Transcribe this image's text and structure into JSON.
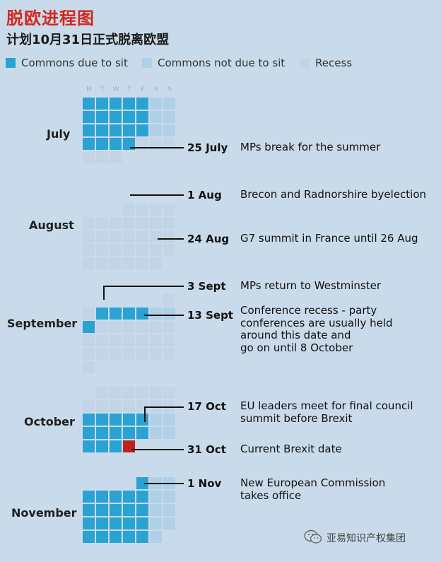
{
  "title": "脱欧进程图",
  "subtitle": "计划10月31日正式脱离欧盟",
  "legend": {
    "sitting": "Commons due to sit",
    "not_sitting": "Commons not due to sit",
    "recess": "Recess"
  },
  "colors": {
    "sitting": "#2aa3d3",
    "not_sitting": "#afd0e7",
    "recess": "#c3d4e6",
    "brexit_day": "#c0201e",
    "text": "#111111",
    "title": "#d6251f"
  },
  "weekdays": [
    "M",
    "T",
    "W",
    "T",
    "F",
    "S",
    "S"
  ],
  "months": [
    {
      "key": "july",
      "label": "July",
      "start_weekday": 0,
      "days": 31
    },
    {
      "key": "august",
      "label": "August",
      "start_weekday": 3,
      "days": 31
    },
    {
      "key": "september",
      "label": "September",
      "start_weekday": 6,
      "days": 30
    },
    {
      "key": "october",
      "label": "October",
      "start_weekday": 1,
      "days": 31
    },
    {
      "key": "november",
      "label": "November",
      "start_weekday": 4,
      "days": 30
    }
  ],
  "sitting_ranges": [
    {
      "month": "july",
      "from": 1,
      "to": 25
    },
    {
      "month": "september",
      "from": 3,
      "to": 9
    },
    {
      "month": "october",
      "from": 14,
      "to": 31
    },
    {
      "month": "november",
      "from": 1,
      "to": 30
    }
  ],
  "brexit_day": {
    "month": "october",
    "day": 31
  },
  "events": [
    {
      "date": "25 July",
      "text": "MPs break for the summer"
    },
    {
      "date": "1 Aug",
      "text": "Brecon and Radnorshire byelection"
    },
    {
      "date": "24 Aug",
      "text": "G7 summit in France until 26 Aug"
    },
    {
      "date": "3 Sept",
      "text": "MPs return to Westminster"
    },
    {
      "date": "13 Sept",
      "text": "Conference recess - party\nconferences are usually held\naround this date and\ngo on until 8 October"
    },
    {
      "date": "17 Oct",
      "text": "EU leaders meet for final council\nsummit before Brexit"
    },
    {
      "date": "31 Oct",
      "text": "Current Brexit date"
    },
    {
      "date": "1 Nov",
      "text": "New European Commission\ntakes office"
    }
  ],
  "watermark": {
    "text": "亚易知识产权集团",
    "icon": "wechat-icon"
  }
}
